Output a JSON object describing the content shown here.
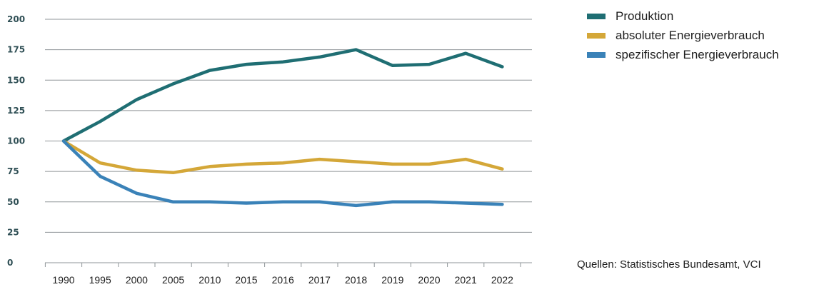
{
  "chart_data": {
    "type": "line",
    "categories": [
      "1990",
      "1995",
      "2000",
      "2005",
      "2010",
      "2015",
      "2016",
      "2017",
      "2018",
      "2019",
      "2020",
      "2021",
      "2022"
    ],
    "ylim": [
      0,
      200
    ],
    "yticks": [
      0,
      25,
      50,
      75,
      100,
      125,
      150,
      175,
      200
    ],
    "grid": true,
    "legend_position": "top-right",
    "series": [
      {
        "name": "Produktion",
        "color": "#1f6e73",
        "values": [
          100,
          116,
          134,
          147,
          158,
          163,
          165,
          169,
          175,
          162,
          163,
          172,
          161
        ]
      },
      {
        "name": "absoluter Energieverbrauch",
        "color": "#d4a738",
        "values": [
          100,
          82,
          76,
          74,
          79,
          81,
          82,
          85,
          83,
          81,
          81,
          85,
          77
        ]
      },
      {
        "name": "spezifischer Energieverbrauch",
        "color": "#3a82b8",
        "values": [
          100,
          71,
          57,
          50,
          50,
          49,
          50,
          50,
          47,
          50,
          50,
          49,
          48
        ]
      }
    ]
  },
  "source_note": "Quellen: Statistisches Bundesamt, VCI"
}
